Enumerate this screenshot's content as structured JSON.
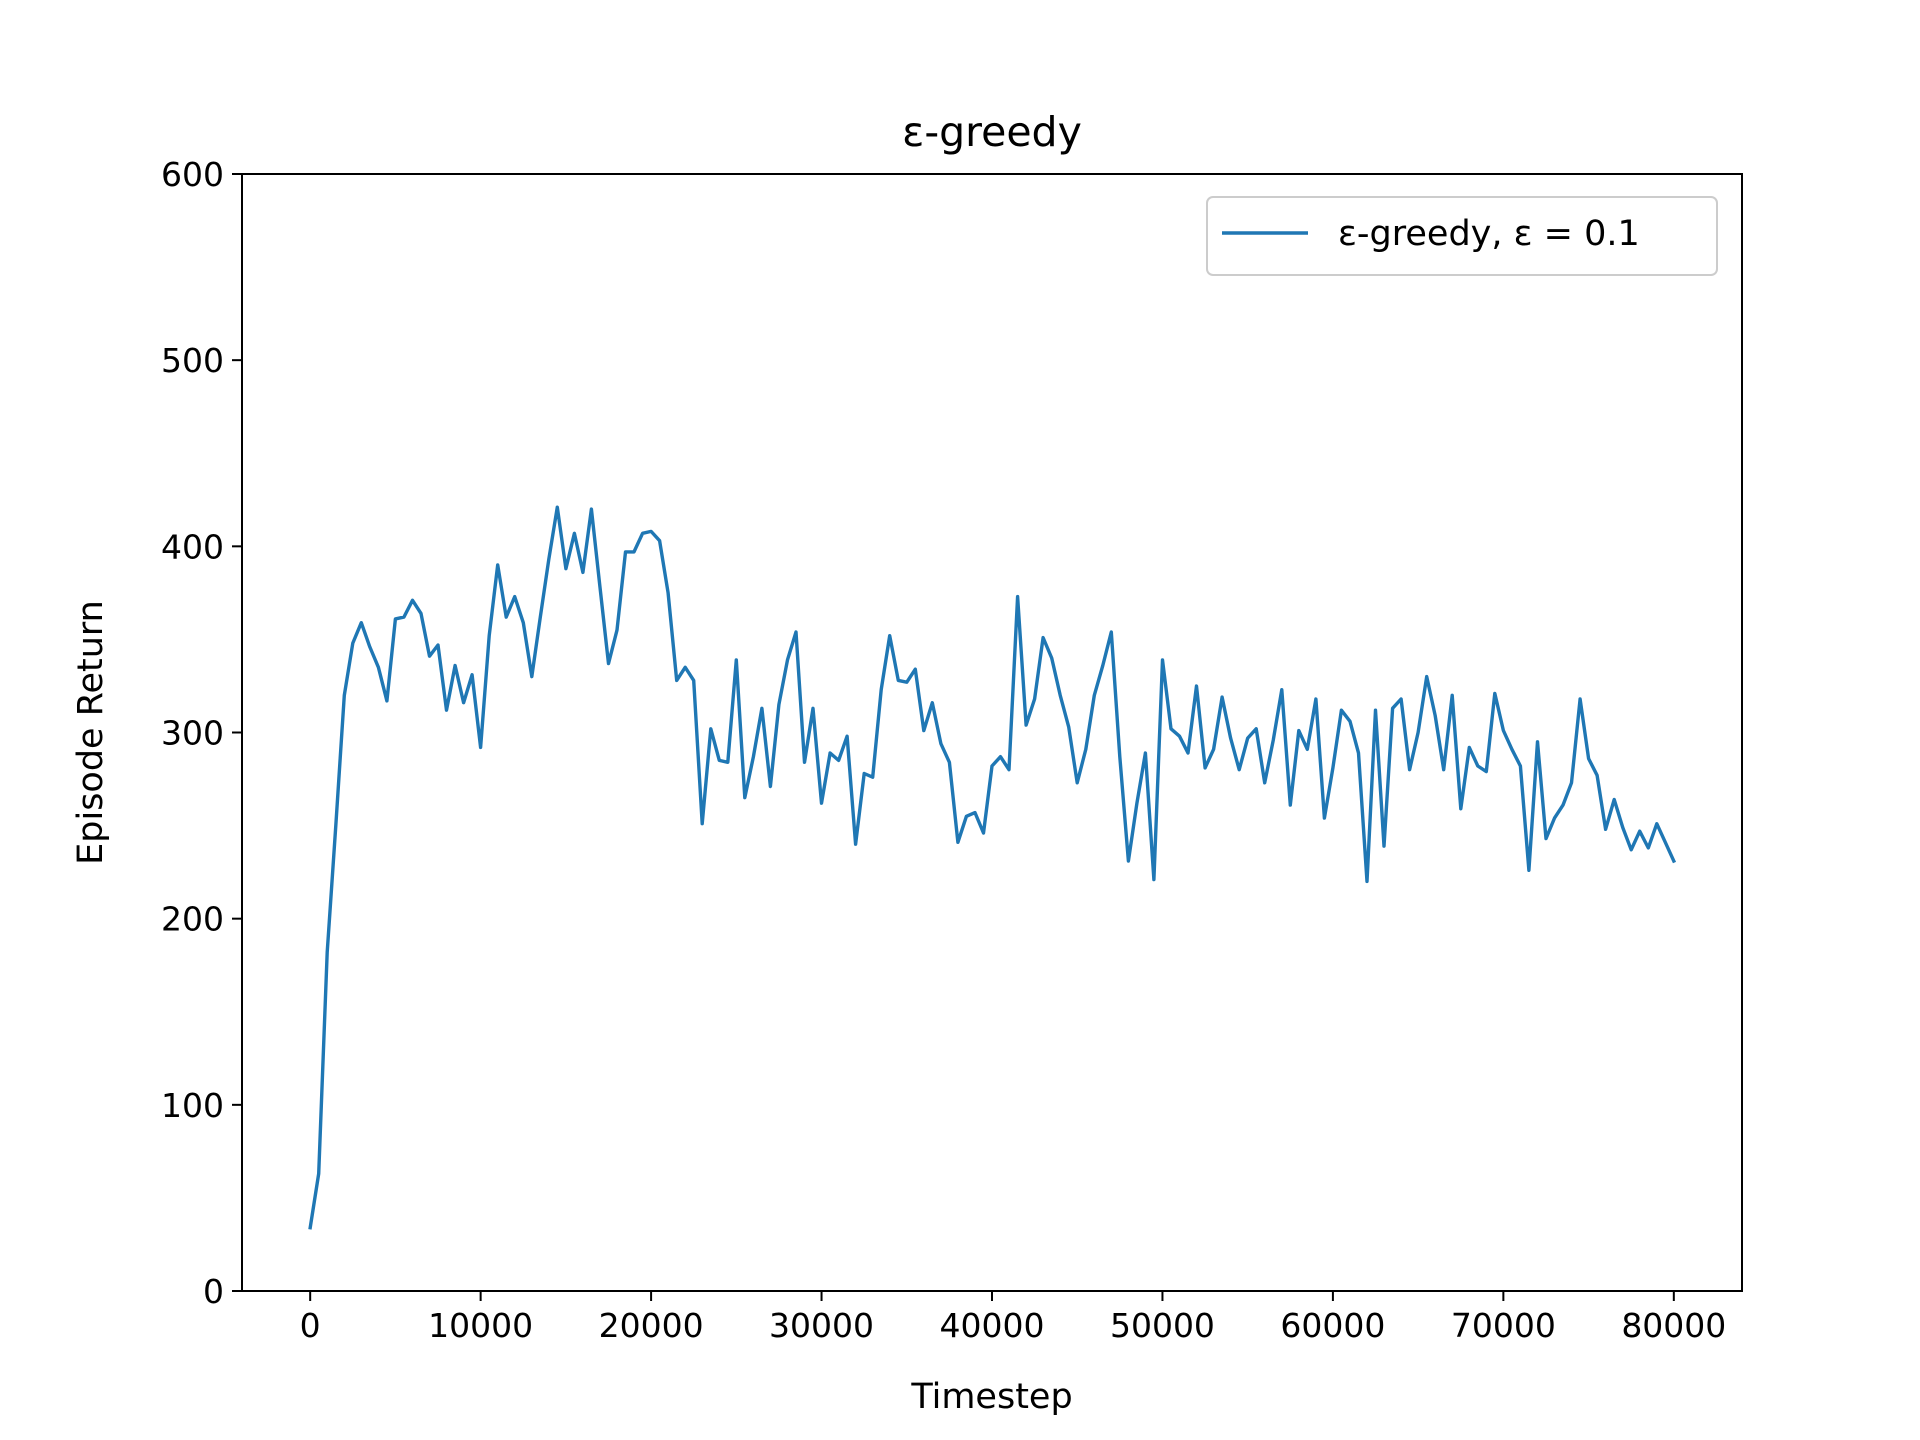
{
  "chart_data": {
    "type": "line",
    "title": "ε-greedy",
    "xlabel": "Timestep",
    "ylabel": "Episode Return",
    "xlim": [
      -4000,
      84000
    ],
    "ylim": [
      0,
      600
    ],
    "xticks": [
      0,
      10000,
      20000,
      30000,
      40000,
      50000,
      60000,
      70000,
      80000
    ],
    "yticks": [
      0,
      100,
      200,
      300,
      400,
      500,
      600
    ],
    "grid": false,
    "legend_position": "top-right",
    "series": [
      {
        "name": "ε-greedy, ε = 0.1",
        "color": "#1f77b4",
        "x": [
          0,
          500,
          1000,
          1500,
          2000,
          2500,
          3000,
          3500,
          4000,
          4500,
          5000,
          5500,
          6000,
          6500,
          7000,
          7500,
          8000,
          8500,
          9000,
          9500,
          10000,
          10500,
          11000,
          11500,
          12000,
          12500,
          13000,
          13500,
          14000,
          14500,
          15000,
          15500,
          16000,
          16500,
          17000,
          17500,
          18000,
          18500,
          19000,
          19500,
          20000,
          20500,
          21000,
          21500,
          22000,
          22500,
          23000,
          23500,
          24000,
          24500,
          25000,
          25500,
          26000,
          26500,
          27000,
          27500,
          28000,
          28500,
          29000,
          29500,
          30000,
          30500,
          31000,
          31500,
          32000,
          32500,
          33000,
          33500,
          34000,
          34500,
          35000,
          35500,
          36000,
          36500,
          37000,
          37500,
          38000,
          38500,
          39000,
          39500,
          40000,
          40500,
          41000,
          41500,
          42000,
          42500,
          43000,
          43500,
          44000,
          44500,
          45000,
          45500,
          46000,
          46500,
          47000,
          47500,
          48000,
          48500,
          49000,
          49500,
          50000,
          50500,
          51000,
          51500,
          52000,
          52500,
          53000,
          53500,
          54000,
          54500,
          55000,
          55500,
          56000,
          56500,
          57000,
          57500,
          58000,
          58500,
          59000,
          59500,
          60000,
          60500,
          61000,
          61500,
          62000,
          62500,
          63000,
          63500,
          64000,
          64500,
          65000,
          65500,
          66000,
          66500,
          67000,
          67500,
          68000,
          68500,
          69000,
          69500,
          70000,
          70500,
          71000,
          71500,
          72000,
          72500,
          73000,
          73500,
          74000,
          74500,
          75000,
          75500,
          76000,
          76500,
          77000,
          77500,
          78000,
          78500,
          79000,
          79500,
          80000
        ],
        "values": [
          34,
          63,
          182,
          250,
          320,
          348,
          359,
          346,
          335,
          317,
          361,
          362,
          371,
          364,
          341,
          347,
          312,
          336,
          316,
          331,
          292,
          352,
          390,
          362,
          373,
          359,
          330,
          362,
          393,
          421,
          388,
          407,
          386,
          420,
          378,
          337,
          355,
          397,
          397,
          407,
          408,
          403,
          375,
          328,
          335,
          328,
          251,
          302,
          285,
          284,
          339,
          265,
          287,
          313,
          271,
          315,
          339,
          354,
          284,
          313,
          262,
          289,
          285,
          298,
          240,
          278,
          276,
          323,
          352,
          328,
          327,
          334,
          301,
          316,
          294,
          284,
          241,
          255,
          257,
          246,
          282,
          287,
          280,
          373,
          304,
          318,
          351,
          340,
          320,
          303,
          273,
          291,
          320,
          336,
          354,
          287,
          231,
          262,
          289,
          221,
          339,
          302,
          298,
          289,
          325,
          281,
          291,
          319,
          297,
          280,
          297,
          302,
          273,
          296,
          323,
          261,
          301,
          291,
          318,
          254,
          281,
          312,
          306,
          289,
          220,
          312,
          239,
          313,
          318,
          280,
          300,
          330,
          309,
          280,
          320,
          259,
          292,
          282,
          279,
          321,
          301,
          291,
          282,
          226,
          295,
          243,
          254,
          261,
          273,
          318,
          286,
          277,
          248,
          264,
          249,
          237,
          247,
          238,
          251,
          241,
          231
        ]
      }
    ]
  }
}
